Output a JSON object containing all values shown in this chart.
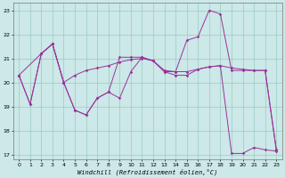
{
  "xlabel": "Windchill (Refroidissement éolien,°C)",
  "background_color": "#cce8e8",
  "line_color": "#993399",
  "grid_color": "#99ccbb",
  "xlim": [
    -0.5,
    23.5
  ],
  "ylim": [
    16.8,
    23.3
  ],
  "yticks": [
    17,
    18,
    19,
    20,
    21,
    22,
    23
  ],
  "xticks": [
    0,
    1,
    2,
    3,
    4,
    5,
    6,
    7,
    8,
    9,
    10,
    11,
    12,
    13,
    14,
    15,
    16,
    17,
    18,
    19,
    20,
    21,
    22,
    23
  ],
  "line1_x": [
    0,
    1,
    2,
    3,
    4,
    5,
    6,
    7,
    8,
    9,
    10,
    11,
    12,
    13,
    14,
    15,
    16,
    17,
    18,
    19,
    20,
    21,
    22,
    23
  ],
  "line1_y": [
    20.3,
    19.1,
    21.2,
    21.6,
    20.0,
    18.85,
    18.65,
    19.35,
    19.6,
    21.05,
    21.05,
    21.05,
    20.9,
    20.45,
    20.45,
    21.75,
    21.9,
    23.0,
    22.85,
    20.5,
    20.5,
    20.5,
    20.5,
    17.2
  ],
  "line2_x": [
    0,
    2,
    3,
    4,
    5,
    6,
    7,
    8,
    9,
    10,
    11,
    12,
    13,
    14,
    15,
    16,
    17,
    18,
    19,
    20,
    21,
    22,
    23
  ],
  "line2_y": [
    20.3,
    21.2,
    21.6,
    20.0,
    20.3,
    20.5,
    20.6,
    20.7,
    20.85,
    20.95,
    21.0,
    20.9,
    20.5,
    20.45,
    20.45,
    20.55,
    20.65,
    20.7,
    20.6,
    20.55,
    20.5,
    20.5,
    17.2
  ],
  "line3_x": [
    0,
    1,
    2,
    3,
    4,
    5,
    6,
    7,
    8,
    9,
    10,
    11,
    12,
    13,
    14,
    15,
    16,
    17,
    18,
    19,
    20,
    21,
    22,
    23
  ],
  "line3_y": [
    20.3,
    19.1,
    21.2,
    21.6,
    20.0,
    18.85,
    18.65,
    19.35,
    19.6,
    19.35,
    20.45,
    21.05,
    20.9,
    20.45,
    20.3,
    20.3,
    20.55,
    20.65,
    20.7,
    17.05,
    17.05,
    17.3,
    17.2,
    17.15
  ]
}
